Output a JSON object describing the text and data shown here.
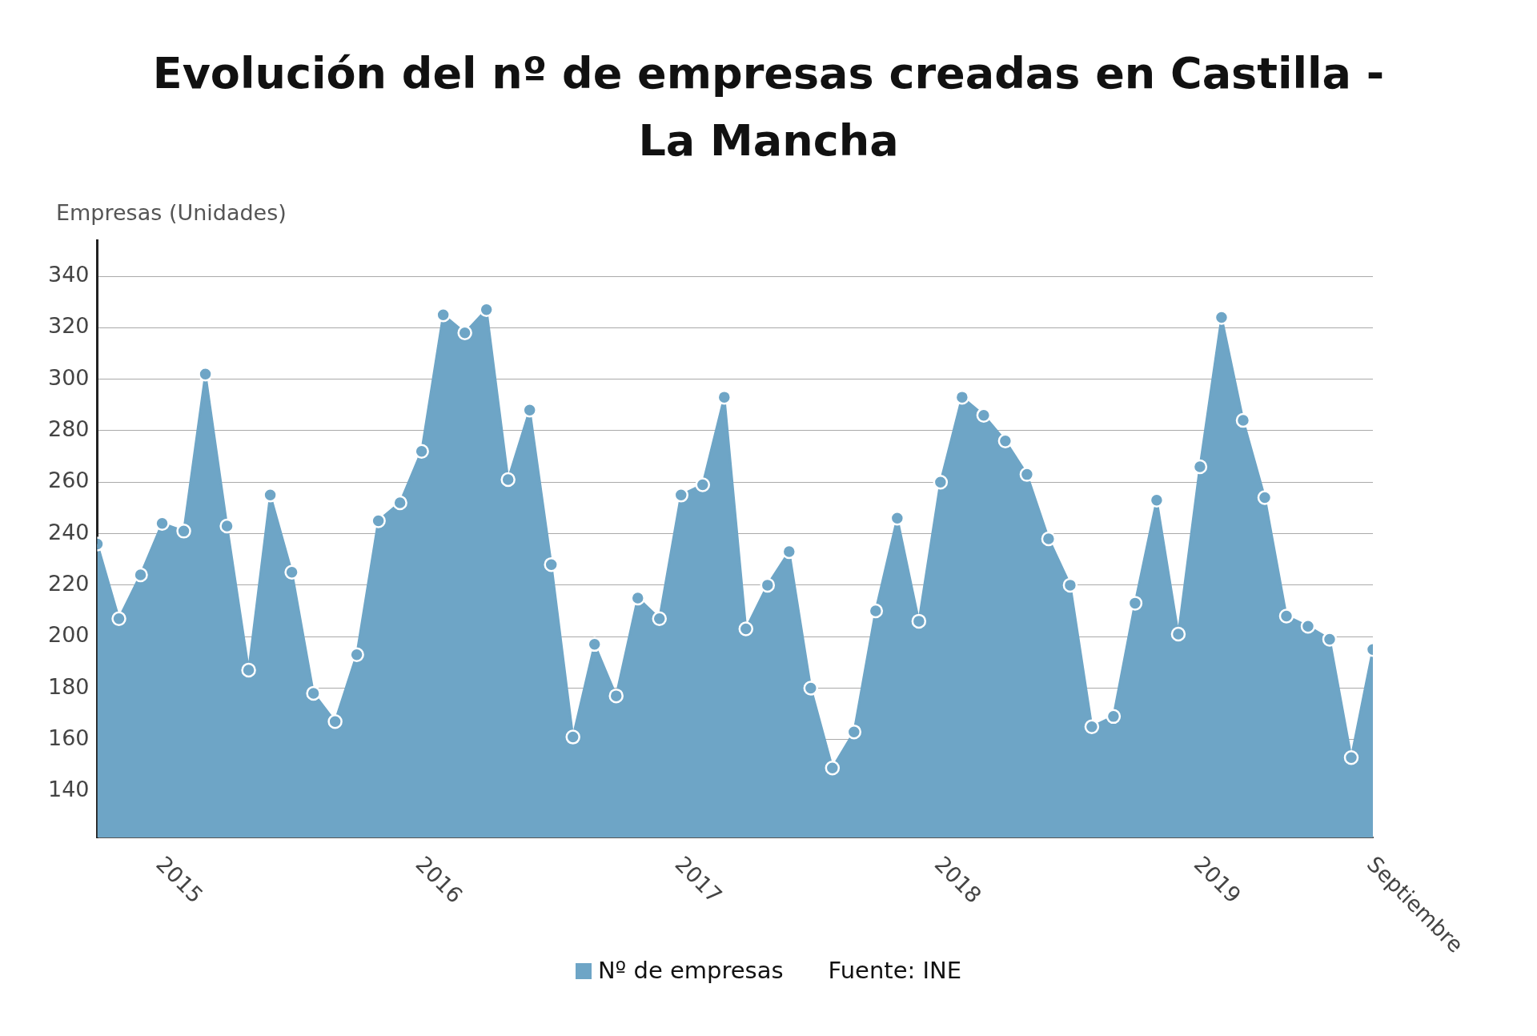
{
  "chart_data": {
    "type": "area",
    "title": "Evolución del nº de empresas creadas en Castilla - La Mancha",
    "ylabel": "Empresas (Unidades)",
    "annotations": [
      "Fuente: INE"
    ],
    "x": [
      "2014-10",
      "2014-11",
      "2014-12",
      "2015-01",
      "2015-02",
      "2015-03",
      "2015-04",
      "2015-05",
      "2015-06",
      "2015-07",
      "2015-08",
      "2015-09",
      "2015-10",
      "2015-11",
      "2015-12",
      "2016-01",
      "2016-02",
      "2016-03",
      "2016-04",
      "2016-05",
      "2016-06",
      "2016-07",
      "2016-08",
      "2016-09",
      "2016-10",
      "2016-11",
      "2016-12",
      "2017-01",
      "2017-02",
      "2017-03",
      "2017-04",
      "2017-05",
      "2017-06",
      "2017-07",
      "2017-08",
      "2017-09",
      "2017-10",
      "2017-11",
      "2017-12",
      "2018-01",
      "2018-02",
      "2018-03",
      "2018-04",
      "2018-05",
      "2018-06",
      "2018-07",
      "2018-08",
      "2018-09",
      "2018-10",
      "2018-11",
      "2018-12",
      "2019-01",
      "2019-02",
      "2019-03",
      "2019-04",
      "2019-05",
      "2019-06",
      "2019-07",
      "2019-08",
      "2019-09"
    ],
    "series": [
      {
        "name": "Nº de empresas",
        "color": "#6ea5c6",
        "values": [
          236,
          207,
          224,
          244,
          241,
          302,
          243,
          187,
          255,
          225,
          178,
          167,
          193,
          245,
          252,
          272,
          325,
          318,
          327,
          261,
          288,
          228,
          161,
          197,
          177,
          215,
          207,
          255,
          259,
          293,
          203,
          220,
          233,
          180,
          149,
          163,
          210,
          246,
          206,
          260,
          293,
          286,
          276,
          263,
          238,
          220,
          165,
          169,
          213,
          253,
          201,
          266,
          324,
          284,
          254,
          208,
          204,
          199,
          153,
          195
        ]
      }
    ],
    "xlim": [
      "2014-10",
      "2019-09"
    ],
    "xticks": [
      {
        "value": "2015-01",
        "label": "2015"
      },
      {
        "value": "2016-01",
        "label": "2016"
      },
      {
        "value": "2017-01",
        "label": "2017"
      },
      {
        "value": "2018-01",
        "label": "2018"
      },
      {
        "value": "2019-01",
        "label": "2019"
      },
      {
        "value": "2019-09",
        "label": "Septiembre"
      }
    ],
    "ylim": [
      122,
      354
    ],
    "yticks": [
      140,
      160,
      180,
      200,
      220,
      240,
      260,
      280,
      300,
      320,
      340
    ],
    "grid": "y",
    "legend": "bottom",
    "marker": "circle",
    "line_style": "solid"
  }
}
